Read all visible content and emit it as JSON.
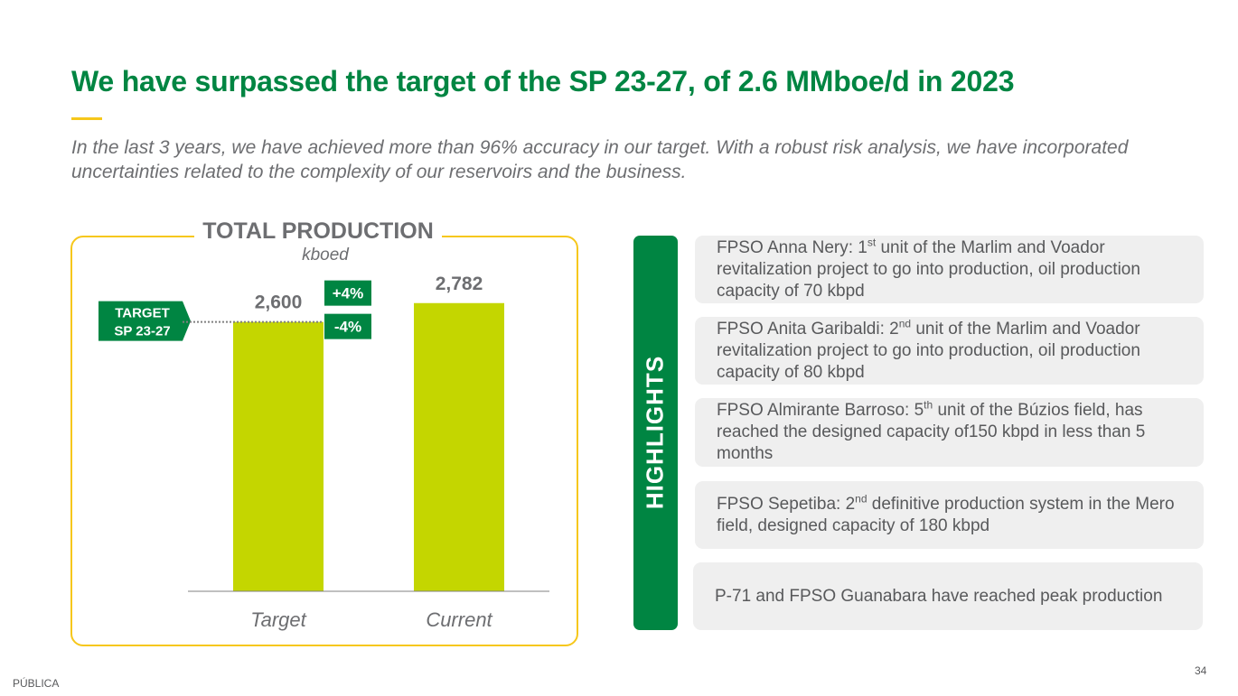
{
  "slide": {
    "title": "We have surpassed the target of the SP 23-27, of 2.6 MMboe/d in 2023",
    "subtitle": "In the last 3 years, we have achieved more than 96% accuracy in our target. With a robust risk analysis, we have incorporated uncertainties related to the complexity of our reservoirs and the business.",
    "footer_label": "PÚBLICA",
    "page_number": "34"
  },
  "chart_data": {
    "type": "bar",
    "title": "TOTAL PRODUCTION",
    "unit": "kboed",
    "categories": [
      "Target",
      "Current"
    ],
    "values": [
      2600,
      2782
    ],
    "value_labels": [
      "2,600",
      "2,782"
    ],
    "target_label_line1": "TARGET",
    "target_label_line2": "SP 23-27",
    "target_value": 2600,
    "band_upper_label": "+4%",
    "band_lower_label": "-4%",
    "ylim": [
      0,
      3050
    ],
    "xlabel": "",
    "ylabel": ""
  },
  "highlights": {
    "label": "HIGHLIGHTS",
    "items": [
      {
        "pre": "FPSO Anna Nery: 1",
        "sup": "st",
        "post": " unit of the Marlim and Voador revitalization project to go into production, oil production capacity of 70 kbpd"
      },
      {
        "pre": "FPSO Anita Garibaldi: 2",
        "sup": "nd",
        "post": " unit of the Marlim and Voador revitalization project to go into production, oil production capacity of 80 kbpd"
      },
      {
        "pre": "FPSO Almirante Barroso: 5",
        "sup": "th",
        "post": " unit of the Búzios field, has reached the designed capacity of150 kbpd in less than 5 months"
      },
      {
        "pre": "FPSO Sepetiba: 2",
        "sup": "nd",
        "post": " definitive production system in the Mero field, designed capacity of 180 kbpd"
      },
      {
        "pre": "P-71 and FPSO Guanabara have reached peak production",
        "sup": "",
        "post": ""
      }
    ]
  },
  "colors": {
    "brand_green": "#008542",
    "bar_fill": "#c4d600",
    "accent_yellow": "#f6c71b",
    "text_gray": "#6d6e71",
    "card_bg": "#efefef"
  }
}
